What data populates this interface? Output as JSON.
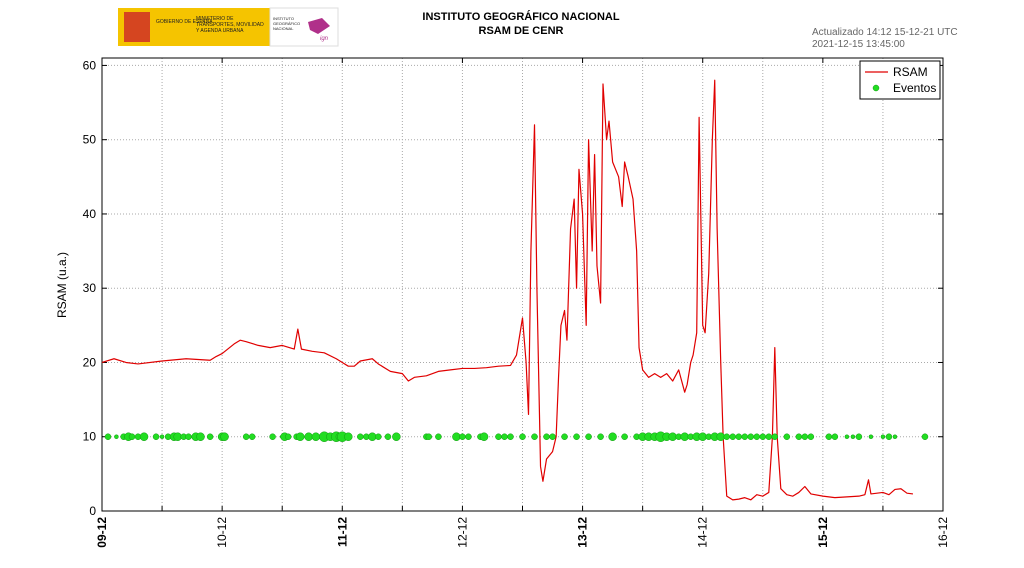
{
  "header": {
    "logo": {
      "gov": "GOBIERNO DE ESPAÑA",
      "ministry": "MINISTERIO DE TRANSPORTES, MOVILIDAD Y AGENDA URBANA",
      "institute": "INSTITUTO GEOGRÁFICO NACIONAL",
      "mark": "ign"
    }
  },
  "chart_data": {
    "type": "line",
    "title": "INSTITUTO GEOGRÁFICO NACIONAL",
    "subtitle": "RSAM DE CENR",
    "annotations": [
      "Actualizado 14:12 15-12-21 UTC",
      "2021-12-15 13:45:00"
    ],
    "ylabel": "RSAM (u.a.)",
    "xlim": [
      0,
      7
    ],
    "xticks": [
      {
        "value": 0,
        "label": "09-12"
      },
      {
        "value": 1,
        "label": "10-12"
      },
      {
        "value": 2,
        "label": "11-12"
      },
      {
        "value": 3,
        "label": "12-12"
      },
      {
        "value": 4,
        "label": "13-12"
      },
      {
        "value": 5,
        "label": "14-12"
      },
      {
        "value": 6,
        "label": "15-12"
      },
      {
        "value": 7,
        "label": "16-12"
      }
    ],
    "x_minor_ticks": [
      0.5,
      1.5,
      2.5,
      3.5,
      4.5,
      5.5,
      6.5
    ],
    "ylim": [
      0,
      61
    ],
    "yticks": [
      0,
      10,
      20,
      30,
      40,
      50,
      60
    ],
    "grid": true,
    "legend": "upper right",
    "series": [
      {
        "name": "RSAM",
        "type": "line",
        "color": "#e00000",
        "x": [
          0,
          0.1,
          0.2,
          0.3,
          0.5,
          0.7,
          0.9,
          0.95,
          1.0,
          1.1,
          1.15,
          1.2,
          1.3,
          1.4,
          1.5,
          1.6,
          1.63,
          1.66,
          1.75,
          1.85,
          1.95,
          2.0,
          2.05,
          2.1,
          2.15,
          2.25,
          2.3,
          2.4,
          2.5,
          2.55,
          2.6,
          2.7,
          2.8,
          2.9,
          3.0,
          3.1,
          3.2,
          3.3,
          3.4,
          3.45,
          3.48,
          3.5,
          3.53,
          3.55,
          3.57,
          3.6,
          3.62,
          3.65,
          3.67,
          3.7,
          3.75,
          3.78,
          3.8,
          3.82,
          3.85,
          3.87,
          3.9,
          3.93,
          3.95,
          3.97,
          4.0,
          4.03,
          4.05,
          4.08,
          4.1,
          4.12,
          4.15,
          4.17,
          4.2,
          4.22,
          4.25,
          4.3,
          4.33,
          4.35,
          4.38,
          4.42,
          4.45,
          4.47,
          4.5,
          4.55,
          4.6,
          4.65,
          4.7,
          4.75,
          4.8,
          4.85,
          4.87,
          4.9,
          4.92,
          4.95,
          4.97,
          5.0,
          5.02,
          5.05,
          5.08,
          5.1,
          5.12,
          5.15,
          5.17,
          5.2,
          5.25,
          5.3,
          5.35,
          5.4,
          5.45,
          5.5,
          5.55,
          5.58,
          5.6,
          5.62,
          5.65,
          5.7,
          5.75,
          5.8,
          5.85,
          5.9,
          6.0,
          6.1,
          6.2,
          6.3,
          6.35,
          6.38,
          6.4,
          6.5,
          6.55,
          6.6,
          6.65,
          6.7,
          6.75
        ],
        "values": [
          20,
          20.5,
          20,
          19.8,
          20.2,
          20.5,
          20.3,
          20.8,
          21.2,
          22.5,
          23,
          22.8,
          22.3,
          22,
          22.3,
          21.8,
          24.5,
          21.8,
          21.5,
          21.3,
          20.5,
          20,
          19.5,
          19.5,
          20.2,
          20.5,
          19.8,
          18.8,
          18.5,
          17.5,
          18,
          18.2,
          18.8,
          19,
          19.2,
          19.2,
          19.3,
          19.5,
          19.6,
          21,
          24,
          26,
          20,
          13,
          35,
          52,
          30,
          6,
          4,
          7,
          8,
          10,
          18,
          25,
          27,
          23,
          38,
          42,
          30,
          46,
          40,
          25,
          50,
          35,
          48,
          33,
          28,
          57.5,
          50,
          52.5,
          47,
          45,
          41,
          47,
          45,
          42,
          35,
          22,
          19,
          18,
          18.5,
          18,
          18.5,
          17.5,
          19,
          16,
          17,
          20,
          21,
          24,
          53,
          25,
          24,
          32,
          50,
          58,
          38,
          20,
          10,
          2,
          1.5,
          1.6,
          1.8,
          1.5,
          2.2,
          2,
          2.5,
          10,
          22,
          10,
          3,
          2.2,
          2,
          2.5,
          3.3,
          2.3,
          2,
          1.8,
          1.9,
          2,
          2.2,
          4.2,
          2.3,
          2.5,
          2.2,
          2.9,
          3,
          2.4,
          2.3
        ]
      },
      {
        "name": "Eventos",
        "type": "scatter",
        "color": "#22dd22",
        "x": [
          0.05,
          0.12,
          0.18,
          0.22,
          0.25,
          0.3,
          0.35,
          0.45,
          0.5,
          0.55,
          0.6,
          0.63,
          0.68,
          0.72,
          0.78,
          0.82,
          0.9,
          1.0,
          1.02,
          1.2,
          1.25,
          1.42,
          1.5,
          1.52,
          1.55,
          1.62,
          1.65,
          1.72,
          1.78,
          1.85,
          1.9,
          1.95,
          1.98,
          2.0,
          2.05,
          2.15,
          2.2,
          2.25,
          2.3,
          2.38,
          2.45,
          2.7,
          2.72,
          2.8,
          2.95,
          3.0,
          3.05,
          3.15,
          3.18,
          3.3,
          3.35,
          3.4,
          3.5,
          3.6,
          3.7,
          3.75,
          3.85,
          3.95,
          4.05,
          4.15,
          4.25,
          4.35,
          4.45,
          4.5,
          4.55,
          4.6,
          4.65,
          4.7,
          4.75,
          4.8,
          4.85,
          4.9,
          4.95,
          5.0,
          5.05,
          5.1,
          5.15,
          5.2,
          5.25,
          5.3,
          5.35,
          5.4,
          5.45,
          5.5,
          5.55,
          5.6,
          5.7,
          5.8,
          5.85,
          5.9,
          6.05,
          6.1,
          6.2,
          6.25,
          6.3,
          6.4,
          6.5,
          6.55,
          6.6,
          6.85
        ],
        "values": [
          10,
          10,
          10,
          10,
          10,
          10,
          10,
          10,
          10,
          10,
          10,
          10,
          10,
          10,
          10,
          10,
          10,
          10,
          10,
          10,
          10,
          10,
          10,
          10,
          10,
          10,
          10,
          10,
          10,
          10,
          10,
          10,
          10,
          10,
          10,
          10,
          10,
          10,
          10,
          10,
          10,
          10,
          10,
          10,
          10,
          10,
          10,
          10,
          10,
          10,
          10,
          10,
          10,
          10,
          10,
          10,
          10,
          10,
          10,
          10,
          10,
          10,
          10,
          10,
          10,
          10,
          10,
          10,
          10,
          10,
          10,
          10,
          10,
          10,
          10,
          10,
          10,
          10,
          10,
          10,
          10,
          10,
          10,
          10,
          10,
          10,
          10,
          10,
          10,
          10,
          10,
          10,
          10,
          10,
          10,
          10,
          10,
          10,
          10,
          10
        ],
        "sizes": [
          3,
          2,
          3,
          4,
          3,
          3,
          4,
          3,
          2,
          3,
          4,
          4,
          3,
          3,
          4,
          4,
          3,
          4,
          4,
          3,
          3,
          3,
          2,
          4,
          3,
          3,
          4,
          4,
          4,
          5,
          4,
          5,
          4,
          5,
          4,
          3,
          3,
          4,
          3,
          3,
          4,
          3,
          3,
          3,
          4,
          3,
          3,
          3,
          4,
          3,
          3,
          3,
          3,
          3,
          3,
          3,
          3,
          3,
          3,
          3,
          4,
          3,
          3,
          4,
          4,
          4,
          5,
          4,
          4,
          3,
          4,
          3,
          4,
          4,
          3,
          4,
          4,
          3,
          3,
          3,
          3,
          3,
          3,
          3,
          3,
          3,
          3,
          3,
          3,
          3,
          3,
          3,
          2,
          2,
          3,
          2,
          2,
          3,
          2,
          3
        ]
      }
    ]
  }
}
